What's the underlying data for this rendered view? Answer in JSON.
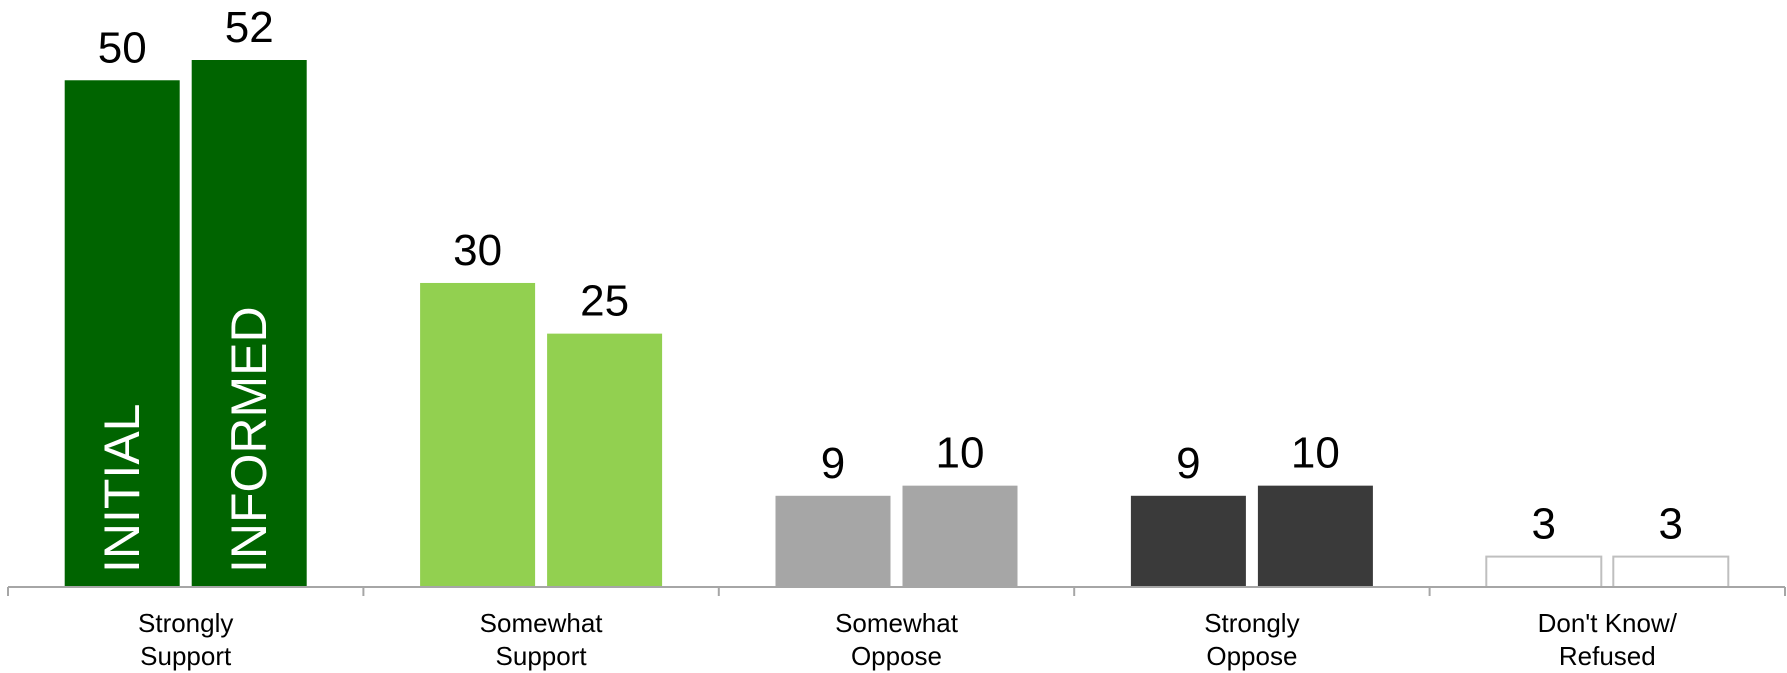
{
  "chart_data": {
    "type": "bar",
    "categories": [
      [
        "Strongly",
        "Support"
      ],
      [
        "Somewhat",
        "Support"
      ],
      [
        "Somewhat",
        "Oppose"
      ],
      [
        "Strongly",
        "Oppose"
      ],
      [
        "Don't Know/",
        "Refused"
      ]
    ],
    "series": [
      {
        "name": "INITIAL",
        "values": [
          50,
          30,
          9,
          9,
          3
        ]
      },
      {
        "name": "INFORMED",
        "values": [
          52,
          25,
          10,
          10,
          3
        ]
      }
    ],
    "category_colors": [
      "#006400",
      "#92D050",
      "#A6A6A6",
      "#3A3A3A",
      "#FFFFFF"
    ],
    "bar_outline_color": "#BFBFBF",
    "axis_color": "#A6A6A6",
    "ylim": [
      0,
      52
    ],
    "grid": false,
    "legend": "in-bar labels on first category"
  }
}
